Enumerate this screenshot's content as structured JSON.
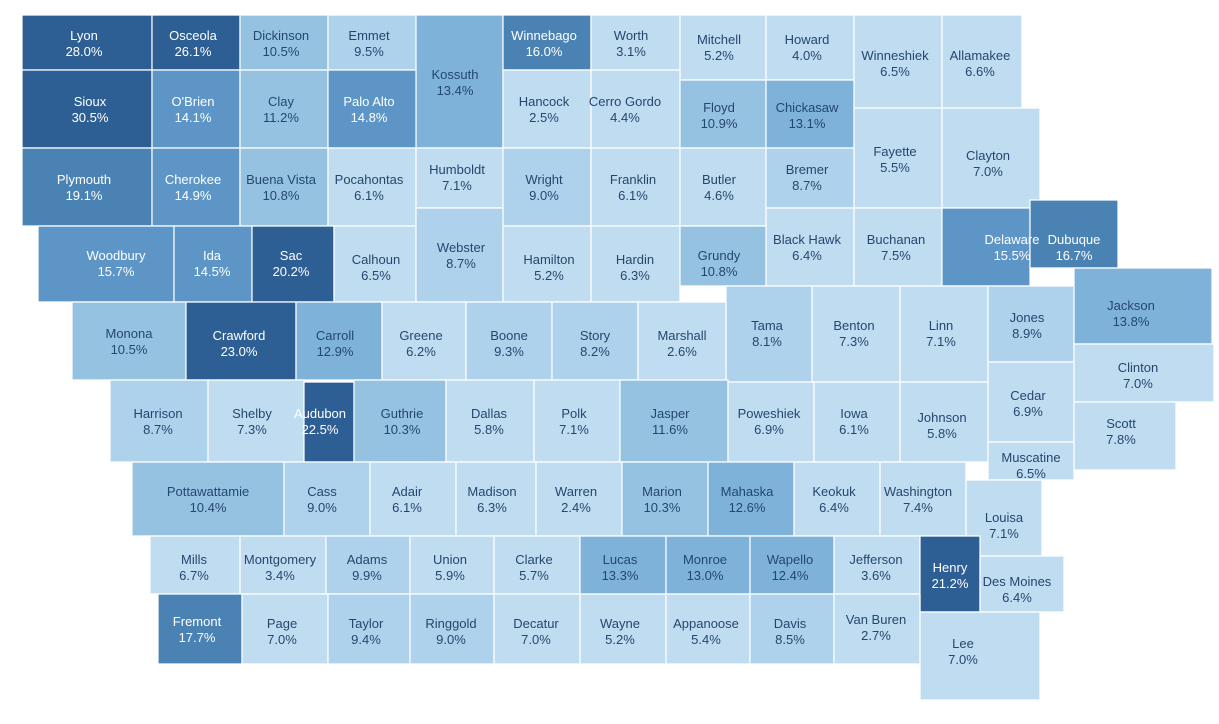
{
  "colors": {
    "ramp": [
      "#c0dcf1",
      "#aed2ec",
      "#96c2e2",
      "#7eb2d9",
      "#5d96c6",
      "#4b82b4",
      "#2e5f94"
    ],
    "dark_text": "#24476f",
    "light_text": "#ffffff"
  },
  "counties": [
    {
      "name": "Lyon",
      "value": "28.0%",
      "pct": 28.0
    },
    {
      "name": "Osceola",
      "value": "26.1%",
      "pct": 26.1
    },
    {
      "name": "Dickinson",
      "value": "10.5%",
      "pct": 10.5
    },
    {
      "name": "Emmet",
      "value": "9.5%",
      "pct": 9.5
    },
    {
      "name": "Kossuth",
      "value": "13.4%",
      "pct": 13.4
    },
    {
      "name": "Winnebago",
      "value": "16.0%",
      "pct": 16.0
    },
    {
      "name": "Worth",
      "value": "3.1%",
      "pct": 3.1
    },
    {
      "name": "Mitchell",
      "value": "5.2%",
      "pct": 5.2
    },
    {
      "name": "Howard",
      "value": "4.0%",
      "pct": 4.0
    },
    {
      "name": "Winneshiek",
      "value": "6.5%",
      "pct": 6.5
    },
    {
      "name": "Allamakee",
      "value": "6.6%",
      "pct": 6.6
    },
    {
      "name": "Sioux",
      "value": "30.5%",
      "pct": 30.5
    },
    {
      "name": "O'Brien",
      "value": "14.1%",
      "pct": 14.1
    },
    {
      "name": "Clay",
      "value": "11.2%",
      "pct": 11.2
    },
    {
      "name": "Palo Alto",
      "value": "14.8%",
      "pct": 14.8
    },
    {
      "name": "Hancock",
      "value": "2.5%",
      "pct": 2.5
    },
    {
      "name": "Cerro Gordo",
      "value": "4.4%",
      "pct": 4.4
    },
    {
      "name": "Floyd",
      "value": "10.9%",
      "pct": 10.9
    },
    {
      "name": "Chickasaw",
      "value": "13.1%",
      "pct": 13.1
    },
    {
      "name": "Fayette",
      "value": "5.5%",
      "pct": 5.5
    },
    {
      "name": "Clayton",
      "value": "7.0%",
      "pct": 7.0
    },
    {
      "name": "Plymouth",
      "value": "19.1%",
      "pct": 19.1
    },
    {
      "name": "Cherokee",
      "value": "14.9%",
      "pct": 14.9
    },
    {
      "name": "Buena Vista",
      "value": "10.8%",
      "pct": 10.8
    },
    {
      "name": "Pocahontas",
      "value": "6.1%",
      "pct": 6.1
    },
    {
      "name": "Humboldt",
      "value": "7.1%",
      "pct": 7.1
    },
    {
      "name": "Wright",
      "value": "9.0%",
      "pct": 9.0
    },
    {
      "name": "Franklin",
      "value": "6.1%",
      "pct": 6.1
    },
    {
      "name": "Butler",
      "value": "4.6%",
      "pct": 4.6
    },
    {
      "name": "Bremer",
      "value": "8.7%",
      "pct": 8.7
    },
    {
      "name": "Black Hawk",
      "value": "6.4%",
      "pct": 6.4
    },
    {
      "name": "Buchanan",
      "value": "7.5%",
      "pct": 7.5
    },
    {
      "name": "Delaware",
      "value": "15.5%",
      "pct": 15.5
    },
    {
      "name": "Dubuque",
      "value": "16.7%",
      "pct": 16.7
    },
    {
      "name": "Woodbury",
      "value": "15.7%",
      "pct": 15.7
    },
    {
      "name": "Ida",
      "value": "14.5%",
      "pct": 14.5
    },
    {
      "name": "Sac",
      "value": "20.2%",
      "pct": 20.2
    },
    {
      "name": "Calhoun",
      "value": "6.5%",
      "pct": 6.5
    },
    {
      "name": "Webster",
      "value": "8.7%",
      "pct": 8.7
    },
    {
      "name": "Hamilton",
      "value": "5.2%",
      "pct": 5.2
    },
    {
      "name": "Hardin",
      "value": "6.3%",
      "pct": 6.3
    },
    {
      "name": "Grundy",
      "value": "10.8%",
      "pct": 10.8
    },
    {
      "name": "Tama",
      "value": "8.1%",
      "pct": 8.1
    },
    {
      "name": "Benton",
      "value": "7.3%",
      "pct": 7.3
    },
    {
      "name": "Linn",
      "value": "7.1%",
      "pct": 7.1
    },
    {
      "name": "Jones",
      "value": "8.9%",
      "pct": 8.9
    },
    {
      "name": "Jackson",
      "value": "13.8%",
      "pct": 13.8
    },
    {
      "name": "Monona",
      "value": "10.5%",
      "pct": 10.5
    },
    {
      "name": "Crawford",
      "value": "23.0%",
      "pct": 23.0
    },
    {
      "name": "Carroll",
      "value": "12.9%",
      "pct": 12.9
    },
    {
      "name": "Greene",
      "value": "6.2%",
      "pct": 6.2
    },
    {
      "name": "Boone",
      "value": "9.3%",
      "pct": 9.3
    },
    {
      "name": "Story",
      "value": "8.2%",
      "pct": 8.2
    },
    {
      "name": "Marshall",
      "value": "2.6%",
      "pct": 2.6
    },
    {
      "name": "Clinton",
      "value": "7.0%",
      "pct": 7.0
    },
    {
      "name": "Harrison",
      "value": "8.7%",
      "pct": 8.7
    },
    {
      "name": "Shelby",
      "value": "7.3%",
      "pct": 7.3
    },
    {
      "name": "Audubon",
      "value": "22.5%",
      "pct": 22.5
    },
    {
      "name": "Guthrie",
      "value": "10.3%",
      "pct": 10.3
    },
    {
      "name": "Dallas",
      "value": "5.8%",
      "pct": 5.8
    },
    {
      "name": "Polk",
      "value": "7.1%",
      "pct": 7.1
    },
    {
      "name": "Jasper",
      "value": "11.6%",
      "pct": 11.6
    },
    {
      "name": "Poweshiek",
      "value": "6.9%",
      "pct": 6.9
    },
    {
      "name": "Iowa",
      "value": "6.1%",
      "pct": 6.1
    },
    {
      "name": "Johnson",
      "value": "5.8%",
      "pct": 5.8
    },
    {
      "name": "Cedar",
      "value": "6.9%",
      "pct": 6.9
    },
    {
      "name": "Scott",
      "value": "7.8%",
      "pct": 7.8
    },
    {
      "name": "Muscatine",
      "value": "6.5%",
      "pct": 6.5
    },
    {
      "name": "Pottawattamie",
      "value": "10.4%",
      "pct": 10.4
    },
    {
      "name": "Cass",
      "value": "9.0%",
      "pct": 9.0
    },
    {
      "name": "Adair",
      "value": "6.1%",
      "pct": 6.1
    },
    {
      "name": "Madison",
      "value": "6.3%",
      "pct": 6.3
    },
    {
      "name": "Warren",
      "value": "2.4%",
      "pct": 2.4
    },
    {
      "name": "Marion",
      "value": "10.3%",
      "pct": 10.3
    },
    {
      "name": "Mahaska",
      "value": "12.6%",
      "pct": 12.6
    },
    {
      "name": "Keokuk",
      "value": "6.4%",
      "pct": 6.4
    },
    {
      "name": "Washington",
      "value": "7.4%",
      "pct": 7.4
    },
    {
      "name": "Louisa",
      "value": "7.1%",
      "pct": 7.1
    },
    {
      "name": "Mills",
      "value": "6.7%",
      "pct": 6.7
    },
    {
      "name": "Montgomery",
      "value": "3.4%",
      "pct": 3.4
    },
    {
      "name": "Adams",
      "value": "9.9%",
      "pct": 9.9
    },
    {
      "name": "Union",
      "value": "5.9%",
      "pct": 5.9
    },
    {
      "name": "Clarke",
      "value": "5.7%",
      "pct": 5.7
    },
    {
      "name": "Lucas",
      "value": "13.3%",
      "pct": 13.3
    },
    {
      "name": "Monroe",
      "value": "13.0%",
      "pct": 13.0
    },
    {
      "name": "Wapello",
      "value": "12.4%",
      "pct": 12.4
    },
    {
      "name": "Jefferson",
      "value": "3.6%",
      "pct": 3.6
    },
    {
      "name": "Henry",
      "value": "21.2%",
      "pct": 21.2
    },
    {
      "name": "Des Moines",
      "value": "6.4%",
      "pct": 6.4
    },
    {
      "name": "Fremont",
      "value": "17.7%",
      "pct": 17.7
    },
    {
      "name": "Page",
      "value": "7.0%",
      "pct": 7.0
    },
    {
      "name": "Taylor",
      "value": "9.4%",
      "pct": 9.4
    },
    {
      "name": "Ringgold",
      "value": "9.0%",
      "pct": 9.0
    },
    {
      "name": "Decatur",
      "value": "7.0%",
      "pct": 7.0
    },
    {
      "name": "Wayne",
      "value": "5.2%",
      "pct": 5.2
    },
    {
      "name": "Appanoose",
      "value": "5.4%",
      "pct": 5.4
    },
    {
      "name": "Davis",
      "value": "8.5%",
      "pct": 8.5
    },
    {
      "name": "Van Buren",
      "value": "2.7%",
      "pct": 2.7
    },
    {
      "name": "Lee",
      "value": "7.0%",
      "pct": 7.0
    }
  ]
}
